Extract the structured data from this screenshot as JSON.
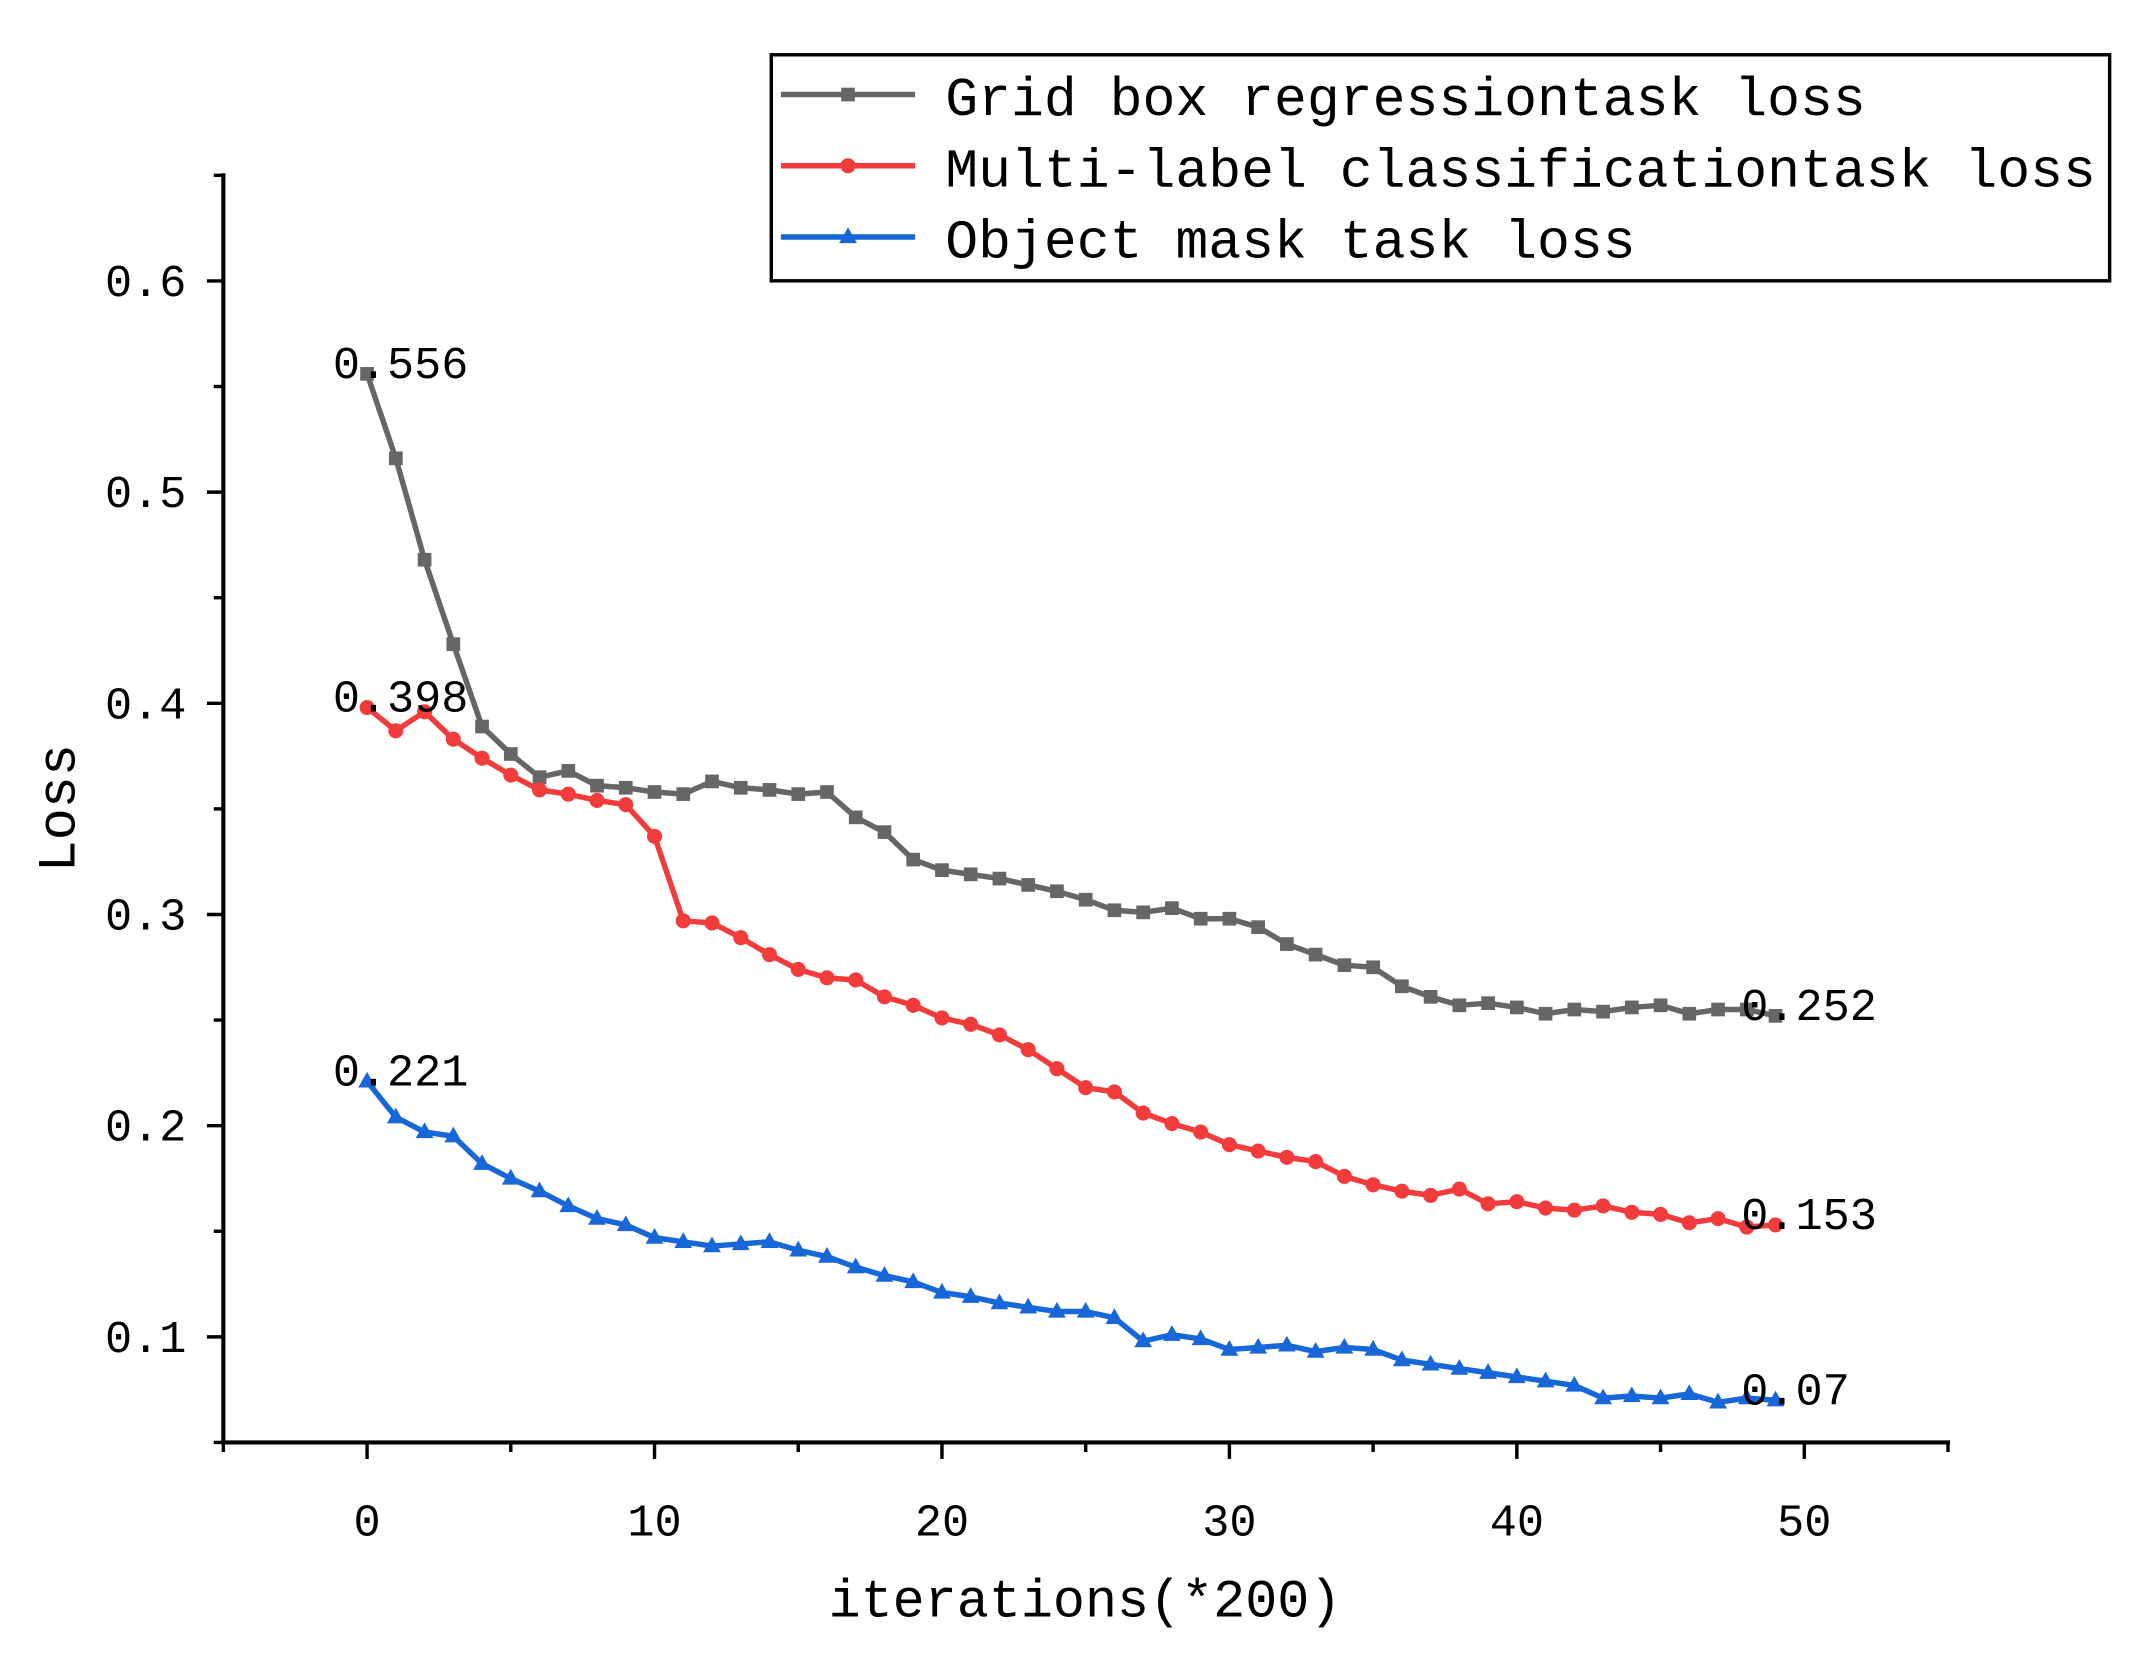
{
  "chart_data": {
    "type": "line",
    "title": "",
    "xlabel": "iterations(*200)",
    "ylabel": "Loss",
    "xlim": [
      -5,
      55
    ],
    "ylim": [
      0.05,
      0.65
    ],
    "grid": false,
    "legend": {
      "position": "top-right"
    },
    "x_ticks": {
      "values": [
        0,
        10,
        20,
        30,
        40,
        50
      ],
      "labels": [
        "0",
        "10",
        "20",
        "30",
        "40",
        "50"
      ]
    },
    "y_ticks": {
      "values": [
        0.1,
        0.2,
        0.3,
        0.4,
        0.5,
        0.6
      ],
      "labels": [
        "0.1",
        "0.2",
        "0.3",
        "0.4",
        "0.5",
        "0.6"
      ]
    },
    "x_minor_ticks": [
      -5,
      5,
      15,
      25,
      35,
      45,
      55
    ],
    "y_minor_ticks": [
      0.05,
      0.15,
      0.25,
      0.35,
      0.45,
      0.55,
      0.65
    ],
    "x": [
      0,
      1,
      2,
      3,
      4,
      5,
      6,
      7,
      8,
      9,
      10,
      11,
      12,
      13,
      14,
      15,
      16,
      17,
      18,
      19,
      20,
      21,
      22,
      23,
      24,
      25,
      26,
      27,
      28,
      29,
      30,
      31,
      32,
      33,
      34,
      35,
      36,
      37,
      38,
      39,
      40,
      41,
      42,
      43,
      44,
      45,
      46,
      47,
      48,
      49
    ],
    "series": [
      {
        "name": "Grid box regressiontask loss",
        "color": "#666666",
        "marker": "square",
        "values": [
          0.556,
          0.516,
          0.468,
          0.428,
          0.389,
          0.376,
          0.365,
          0.368,
          0.361,
          0.36,
          0.358,
          0.357,
          0.363,
          0.36,
          0.359,
          0.357,
          0.358,
          0.346,
          0.339,
          0.326,
          0.321,
          0.319,
          0.317,
          0.314,
          0.311,
          0.307,
          0.302,
          0.301,
          0.303,
          0.298,
          0.298,
          0.294,
          0.286,
          0.281,
          0.276,
          0.275,
          0.266,
          0.261,
          0.257,
          0.258,
          0.256,
          0.253,
          0.255,
          0.254,
          0.256,
          0.257,
          0.253,
          0.255,
          0.255,
          0.252
        ]
      },
      {
        "name": "Multi-label classificationtask loss",
        "color": "#f23c3c",
        "marker": "circle",
        "values": [
          0.398,
          0.387,
          0.396,
          0.383,
          0.374,
          0.366,
          0.359,
          0.357,
          0.354,
          0.352,
          0.337,
          0.297,
          0.296,
          0.289,
          0.281,
          0.274,
          0.27,
          0.269,
          0.261,
          0.257,
          0.251,
          0.248,
          0.243,
          0.236,
          0.227,
          0.218,
          0.216,
          0.206,
          0.201,
          0.197,
          0.191,
          0.188,
          0.185,
          0.183,
          0.176,
          0.172,
          0.169,
          0.167,
          0.17,
          0.163,
          0.164,
          0.161,
          0.16,
          0.162,
          0.159,
          0.158,
          0.154,
          0.156,
          0.152,
          0.153
        ]
      },
      {
        "name": "Object mask task loss",
        "color": "#1767d9",
        "marker": "triangle",
        "values": [
          0.221,
          0.204,
          0.197,
          0.195,
          0.182,
          0.175,
          0.169,
          0.162,
          0.156,
          0.153,
          0.147,
          0.145,
          0.143,
          0.144,
          0.145,
          0.141,
          0.138,
          0.133,
          0.129,
          0.126,
          0.121,
          0.119,
          0.116,
          0.114,
          0.112,
          0.112,
          0.109,
          0.098,
          0.101,
          0.099,
          0.094,
          0.095,
          0.096,
          0.093,
          0.095,
          0.094,
          0.089,
          0.087,
          0.085,
          0.083,
          0.081,
          0.079,
          0.077,
          0.071,
          0.072,
          0.071,
          0.073,
          0.069,
          0.071,
          0.07
        ]
      }
    ],
    "annotations": [
      {
        "text": "0.556",
        "x": 0,
        "y": 0.556
      },
      {
        "text": "0.398",
        "x": 0,
        "y": 0.398
      },
      {
        "text": "0.221",
        "x": 0,
        "y": 0.221
      },
      {
        "text": "0.252",
        "x": 49,
        "y": 0.252
      },
      {
        "text": "0.153",
        "x": 49,
        "y": 0.153
      },
      {
        "text": "0.07",
        "x": 49,
        "y": 0.07
      }
    ]
  }
}
